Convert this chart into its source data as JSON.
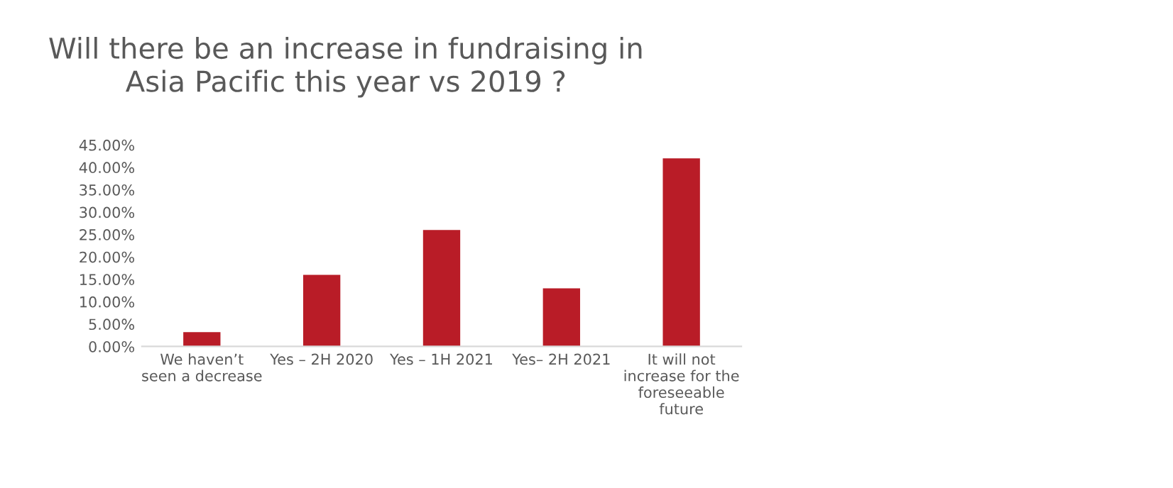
{
  "chart_data": {
    "type": "bar",
    "title": "Will there be an increase in fundraising in\nAsia Pacific this year vs 2019 ?",
    "categories": [
      "We haven’t\nseen a decrease",
      "Yes – 2H 2020",
      "Yes – 1H 2021",
      "Yes– 2H 2021",
      "It will not\nincrease for the\nforeseeable\nfuture"
    ],
    "values": [
      3.2,
      16,
      26,
      13,
      42
    ],
    "color": "#b91c27",
    "ylim": [
      0,
      45
    ],
    "yticks": [
      {
        "value": 0,
        "label": "0.00%"
      },
      {
        "value": 5,
        "label": "5.00%"
      },
      {
        "value": 10,
        "label": "10.00%"
      },
      {
        "value": 15,
        "label": "15.00%"
      },
      {
        "value": 20,
        "label": "20.00%"
      },
      {
        "value": 25,
        "label": "25.00%"
      },
      {
        "value": 30,
        "label": "30.00%"
      },
      {
        "value": 35,
        "label": "35.00%"
      },
      {
        "value": 40,
        "label": "40.00%"
      },
      {
        "value": 45,
        "label": "45.00%"
      }
    ],
    "grid": false
  }
}
